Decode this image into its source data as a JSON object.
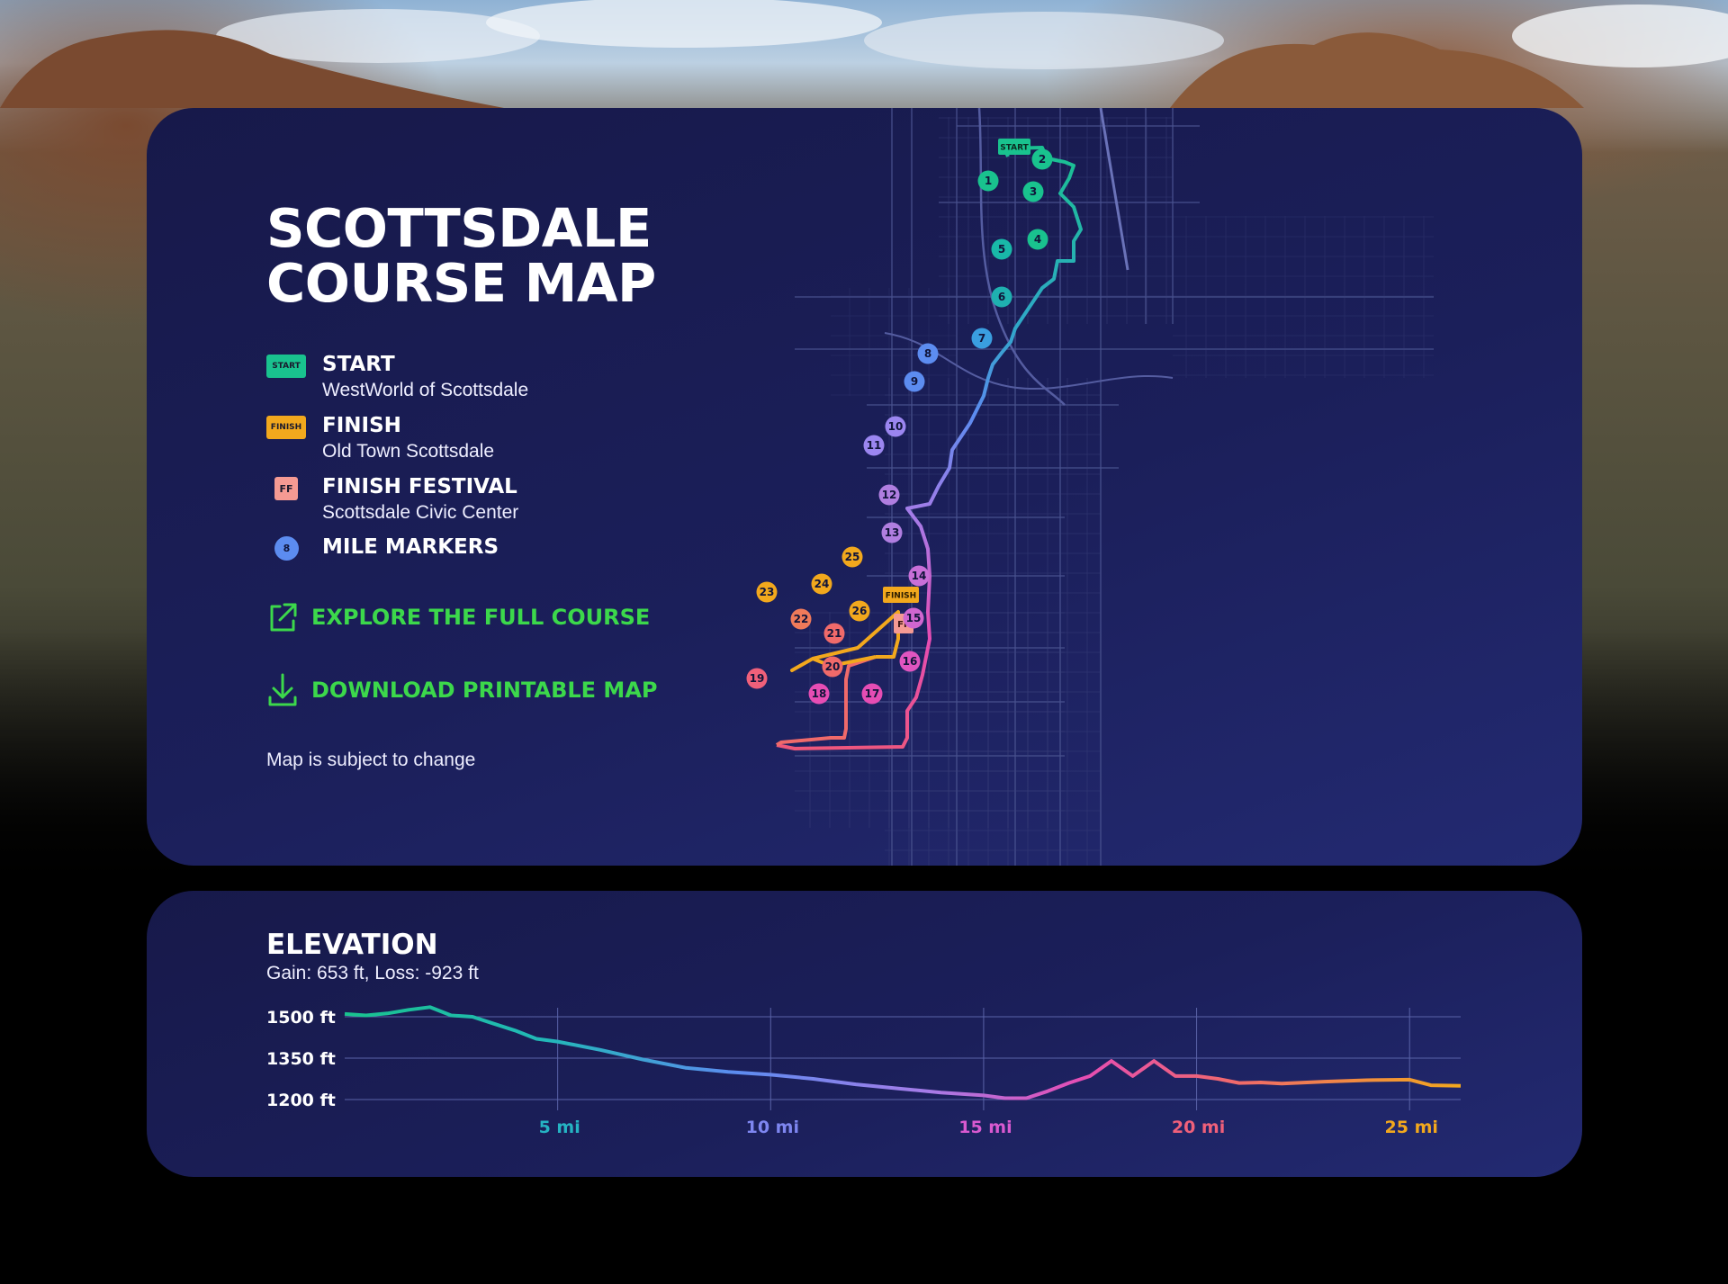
{
  "page": {
    "title_line1": "SCOTTSDALE",
    "title_line2": "COURSE MAP",
    "note": "Map is subject to change"
  },
  "legend": [
    {
      "key": "start",
      "icon_text": "START",
      "title": "START",
      "subtitle": "WestWorld of Scottsdale",
      "color": "#19c28e"
    },
    {
      "key": "finish",
      "icon_text": "FINISH",
      "title": "FINISH",
      "subtitle": "Old Town Scottsdale",
      "color": "#f2a81d"
    },
    {
      "key": "festival",
      "icon_text": "FF",
      "title": "FINISH FESTIVAL",
      "subtitle": "Scottsdale Civic Center",
      "color": "#f59a93"
    },
    {
      "key": "miles",
      "icon_text": "8",
      "title": "MILE MARKERS",
      "subtitle": "",
      "color": "#5c8cf0"
    }
  ],
  "actions": {
    "explore": "EXPLORE THE FULL COURSE",
    "download": "DOWNLOAD PRINTABLE MAP"
  },
  "map_labels": {
    "start": "START",
    "finish": "FINISH",
    "festival": "FF",
    "mile_markers": [
      "1",
      "2",
      "3",
      "4",
      "5",
      "6",
      "7",
      "8",
      "9",
      "10",
      "11",
      "12",
      "13",
      "14",
      "15",
      "16",
      "17",
      "18",
      "19",
      "20",
      "21",
      "22",
      "23",
      "24",
      "25",
      "26"
    ]
  },
  "colors": {
    "accent_green": "#3cd84b",
    "card_bg": "#1b1f5a",
    "route_start": "#19c28e",
    "route_mid": "#8a7cf0",
    "route_pink": "#e64db4",
    "route_end": "#f2a81d"
  },
  "elevation": {
    "title": "ELEVATION",
    "summary": "Gain: 653 ft, Loss: -923 ft"
  },
  "chart_data": {
    "type": "line",
    "title": "ELEVATION",
    "subtitle": "Gain: 653 ft, Loss: -923 ft",
    "xlabel": "",
    "ylabel": "",
    "x_unit": "mi",
    "xlim": [
      0,
      26.2
    ],
    "ylim": [
      1200,
      1500
    ],
    "y_ticks": [
      1500,
      1350,
      1200
    ],
    "y_tick_labels": [
      "1500 ft",
      "1350 ft",
      "1200 ft"
    ],
    "x_ticks": [
      5,
      10,
      15,
      20,
      25
    ],
    "x_tick_labels": [
      "5 mi",
      "10 mi",
      "15 mi",
      "20 mi",
      "25 mi"
    ],
    "x_tick_colors": [
      "#25b3c3",
      "#7e86f0",
      "#d859d0",
      "#f0607a",
      "#f2a81d"
    ],
    "grid": true,
    "series": [
      {
        "name": "Elevation",
        "x": [
          0,
          0.5,
          1,
          1.5,
          2,
          2.5,
          3,
          3.5,
          4,
          4.5,
          5,
          6,
          7,
          8,
          9,
          10,
          11,
          12,
          13,
          14,
          15,
          15.5,
          16,
          16.5,
          17,
          17.5,
          18,
          18.5,
          19,
          19.5,
          20,
          20.5,
          21,
          21.5,
          22,
          23,
          24,
          25,
          25.5,
          26.2
        ],
        "y": [
          1510,
          1505,
          1512,
          1525,
          1535,
          1505,
          1500,
          1475,
          1450,
          1420,
          1410,
          1380,
          1345,
          1315,
          1300,
          1290,
          1275,
          1255,
          1240,
          1225,
          1215,
          1205,
          1205,
          1230,
          1260,
          1285,
          1340,
          1285,
          1340,
          1285,
          1285,
          1275,
          1260,
          1262,
          1258,
          1265,
          1270,
          1272,
          1252,
          1250
        ]
      }
    ]
  }
}
